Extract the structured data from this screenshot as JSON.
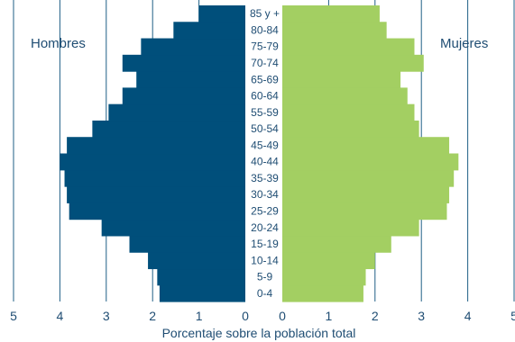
{
  "chart_data": {
    "type": "bar",
    "subtype": "population-pyramid",
    "orientation": "horizontal",
    "categories": [
      "0-4",
      "5-9",
      "10-14",
      "15-19",
      "20-24",
      "25-29",
      "30-34",
      "35-39",
      "40-44",
      "45-49",
      "50-54",
      "55-59",
      "60-64",
      "65-69",
      "70-74",
      "75-79",
      "80-84",
      "85 y +"
    ],
    "series": [
      {
        "name": "Hombres",
        "side": "left",
        "color": "#004f7b",
        "values": [
          1.85,
          1.9,
          2.1,
          2.5,
          3.1,
          3.8,
          3.85,
          3.9,
          4.0,
          3.85,
          3.3,
          2.95,
          2.65,
          2.35,
          2.65,
          2.25,
          1.55,
          1.0
        ]
      },
      {
        "name": "Mujeres",
        "side": "right",
        "color": "#a3cf62",
        "values": [
          1.75,
          1.8,
          2.0,
          2.35,
          2.95,
          3.55,
          3.6,
          3.7,
          3.8,
          3.6,
          2.95,
          2.85,
          2.7,
          2.55,
          3.05,
          2.85,
          2.25,
          2.1
        ]
      }
    ],
    "left_ticks": [
      "5",
      "4",
      "3",
      "2",
      "1",
      "0"
    ],
    "right_ticks": [
      "0",
      "1",
      "2",
      "3",
      "4",
      "5"
    ],
    "xlim": [
      0,
      5
    ],
    "grid": true,
    "xlabel": "Porcentaje sobre la población total",
    "labels": {
      "left": "Hombres",
      "right": "Mujeres"
    }
  }
}
